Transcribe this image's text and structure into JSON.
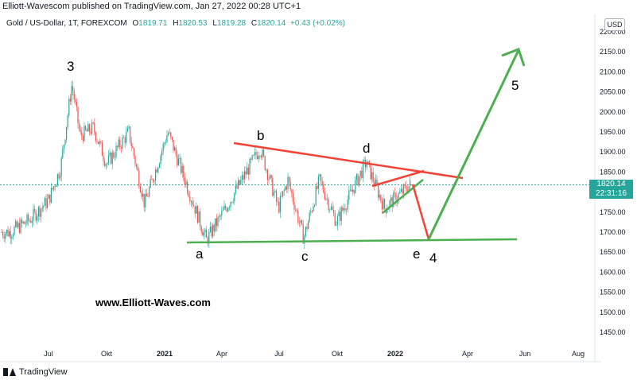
{
  "header": {
    "publish_line": "Elliott-Wavescom published on TradingView.com, Jan 27, 2022 00:28 UTC+1"
  },
  "legend": {
    "symbol": "Gold  / US-Dollar, 1T, FOREXCOM",
    "o_label": "O",
    "o_value": "1819.71",
    "h_label": "H",
    "h_value": "1820.53",
    "l_label": "L",
    "l_value": "1819.28",
    "c_label": "C",
    "c_value": "1820.14",
    "change": "+0.43 (+0.02%)"
  },
  "currency_button": "USD",
  "price_tag": {
    "price": "1820.14",
    "countdown": "22:31:16"
  },
  "watermark": "www.Elliott-Waves.com",
  "brand": "TradingView",
  "colors": {
    "up": "#26a69a",
    "down": "#ef5350",
    "green_line": "#4caf50",
    "red_line": "#f44336"
  },
  "chart_data": {
    "type": "line",
    "title": "Gold  / US-Dollar, 1T, FOREXCOM",
    "xlabel": "",
    "ylabel": "",
    "ylim": [
      1400,
      2200
    ],
    "y_ticks": [
      "2200.00",
      "2150.00",
      "2100.00",
      "2050.00",
      "2000.00",
      "1950.00",
      "1900.00",
      "1850.00",
      "1800.00",
      "1750.00",
      "1700.00",
      "1650.00",
      "1600.00",
      "1550.00",
      "1500.00",
      "1450.00"
    ],
    "x_ticks": [
      "Jul",
      "Okt",
      "2021",
      "Apr",
      "Jul",
      "Okt",
      "2022",
      "Apr",
      "Jun",
      "Aug"
    ],
    "series": [
      {
        "x": [
          "2020-05-01",
          "2020-06-01",
          "2020-07-01",
          "2020-07-20",
          "2020-08-07",
          "2020-08-20",
          "2020-09-10",
          "2020-10-01",
          "2020-11-05",
          "2020-11-30",
          "2021-01-06",
          "2021-03-08",
          "2021-04-15",
          "2021-06-01",
          "2021-06-30",
          "2021-07-15",
          "2021-08-09",
          "2021-09-03",
          "2021-09-30",
          "2021-11-16",
          "2021-12-15",
          "2022-01-26"
        ],
        "values": [
          1700,
          1730,
          1780,
          1860,
          2070,
          1940,
          1960,
          1870,
          1950,
          1770,
          1950,
          1680,
          1780,
          1910,
          1760,
          1830,
          1685,
          1830,
          1725,
          1875,
          1760,
          1820
        ]
      }
    ],
    "annotations": [
      "3",
      "a",
      "b",
      "c",
      "d",
      "e",
      "4",
      "5"
    ],
    "current_price": 1820.14
  }
}
